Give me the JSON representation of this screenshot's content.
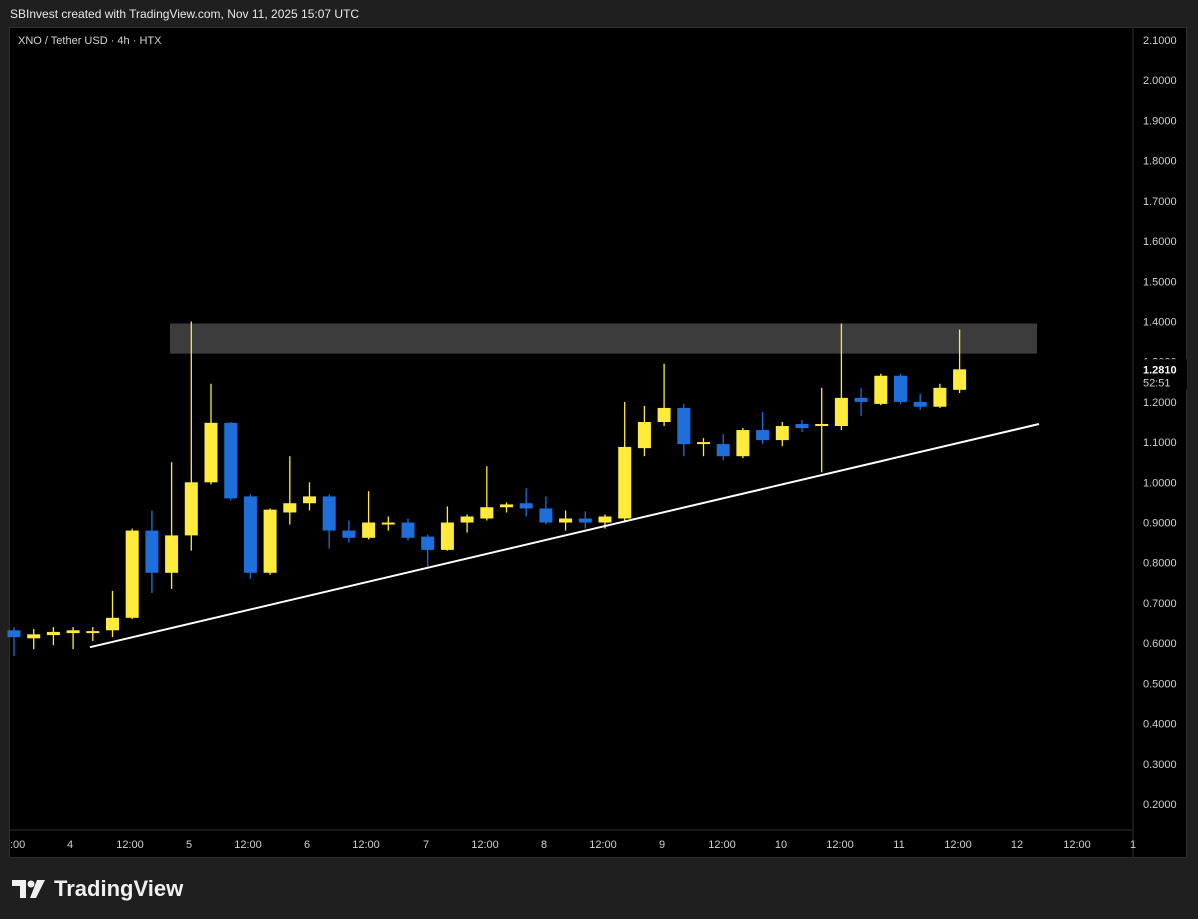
{
  "header": {
    "text": "SBInvest created with TradingView.com, Nov 11, 2025 15:07 UTC"
  },
  "symbol": {
    "text": "XNO / Tether USD · 4h · HTX"
  },
  "brand": {
    "name": "TradingView",
    "icon": "tradingview-logo-icon"
  },
  "colors": {
    "bull": "#ffeb3b",
    "bear": "#1e6fd9",
    "zone": "#3c3c3c",
    "trendline": "#ffffff",
    "background": "#000000",
    "text": "#d1d1d1"
  },
  "chart_data": {
    "type": "candlestick",
    "title": "",
    "ylim": [
      0.15,
      2.15
    ],
    "y_ticks": [
      "2.1000",
      "2.0000",
      "1.9000",
      "1.8000",
      "1.7000",
      "1.6000",
      "1.5000",
      "1.4000",
      "1.3000",
      "1.2000",
      "1.1000",
      "1.0000",
      "0.9000",
      "0.8000",
      "0.7000",
      "0.6000",
      "0.5000",
      "0.4000",
      "0.3000",
      "0.2000"
    ],
    "x_ticks": [
      ":00",
      "4",
      "12:00",
      "5",
      "12:00",
      "6",
      "12:00",
      "7",
      "12:00",
      "8",
      "12:00",
      "9",
      "12:00",
      "10",
      "12:00",
      "11",
      "12:00",
      "12",
      "12:00",
      "1"
    ],
    "last_price": {
      "value": "1.2810",
      "countdown": "52:51"
    },
    "candles": [
      {
        "o": 0.632,
        "h": 0.64,
        "l": 0.568,
        "c": 0.615
      },
      {
        "o": 0.612,
        "h": 0.635,
        "l": 0.585,
        "c": 0.622
      },
      {
        "o": 0.62,
        "h": 0.64,
        "l": 0.595,
        "c": 0.628
      },
      {
        "o": 0.625,
        "h": 0.64,
        "l": 0.585,
        "c": 0.632
      },
      {
        "o": 0.628,
        "h": 0.64,
        "l": 0.605,
        "c": 0.63
      },
      {
        "o": 0.632,
        "h": 0.73,
        "l": 0.615,
        "c": 0.663
      },
      {
        "o": 0.663,
        "h": 0.885,
        "l": 0.66,
        "c": 0.88
      },
      {
        "o": 0.88,
        "h": 0.93,
        "l": 0.725,
        "c": 0.775
      },
      {
        "o": 0.775,
        "h": 1.05,
        "l": 0.735,
        "c": 0.868
      },
      {
        "o": 0.868,
        "h": 1.4,
        "l": 0.83,
        "c": 1.0
      },
      {
        "o": 1.0,
        "h": 1.245,
        "l": 0.995,
        "c": 1.148
      },
      {
        "o": 1.148,
        "h": 1.15,
        "l": 0.955,
        "c": 0.96
      },
      {
        "o": 0.965,
        "h": 0.97,
        "l": 0.76,
        "c": 0.775
      },
      {
        "o": 0.775,
        "h": 0.935,
        "l": 0.77,
        "c": 0.932
      },
      {
        "o": 0.925,
        "h": 1.065,
        "l": 0.895,
        "c": 0.948
      },
      {
        "o": 0.948,
        "h": 1.0,
        "l": 0.93,
        "c": 0.965
      },
      {
        "o": 0.965,
        "h": 0.97,
        "l": 0.835,
        "c": 0.88
      },
      {
        "o": 0.88,
        "h": 0.905,
        "l": 0.85,
        "c": 0.862
      },
      {
        "o": 0.862,
        "h": 0.978,
        "l": 0.858,
        "c": 0.9
      },
      {
        "o": 0.9,
        "h": 0.915,
        "l": 0.88,
        "c": 0.9
      },
      {
        "o": 0.9,
        "h": 0.91,
        "l": 0.855,
        "c": 0.862
      },
      {
        "o": 0.865,
        "h": 0.87,
        "l": 0.79,
        "c": 0.832
      },
      {
        "o": 0.832,
        "h": 0.94,
        "l": 0.83,
        "c": 0.9
      },
      {
        "o": 0.9,
        "h": 0.92,
        "l": 0.875,
        "c": 0.915
      },
      {
        "o": 0.91,
        "h": 1.04,
        "l": 0.905,
        "c": 0.938
      },
      {
        "o": 0.938,
        "h": 0.95,
        "l": 0.925,
        "c": 0.945
      },
      {
        "o": 0.948,
        "h": 0.985,
        "l": 0.915,
        "c": 0.935
      },
      {
        "o": 0.935,
        "h": 0.965,
        "l": 0.895,
        "c": 0.9
      },
      {
        "o": 0.9,
        "h": 0.93,
        "l": 0.88,
        "c": 0.91
      },
      {
        "o": 0.91,
        "h": 0.928,
        "l": 0.885,
        "c": 0.9
      },
      {
        "o": 0.9,
        "h": 0.92,
        "l": 0.885,
        "c": 0.915
      },
      {
        "o": 0.91,
        "h": 1.2,
        "l": 0.9,
        "c": 1.088
      },
      {
        "o": 1.085,
        "h": 1.19,
        "l": 1.065,
        "c": 1.15
      },
      {
        "o": 1.15,
        "h": 1.295,
        "l": 1.14,
        "c": 1.185
      },
      {
        "o": 1.185,
        "h": 1.195,
        "l": 1.065,
        "c": 1.095
      },
      {
        "o": 1.095,
        "h": 1.11,
        "l": 1.065,
        "c": 1.1
      },
      {
        "o": 1.095,
        "h": 1.12,
        "l": 1.055,
        "c": 1.065
      },
      {
        "o": 1.065,
        "h": 1.135,
        "l": 1.06,
        "c": 1.13
      },
      {
        "o": 1.13,
        "h": 1.175,
        "l": 1.095,
        "c": 1.105
      },
      {
        "o": 1.105,
        "h": 1.15,
        "l": 1.09,
        "c": 1.14
      },
      {
        "o": 1.145,
        "h": 1.155,
        "l": 1.125,
        "c": 1.135
      },
      {
        "o": 1.14,
        "h": 1.235,
        "l": 1.025,
        "c": 1.145
      },
      {
        "o": 1.14,
        "h": 1.395,
        "l": 1.13,
        "c": 1.21
      },
      {
        "o": 1.21,
        "h": 1.235,
        "l": 1.165,
        "c": 1.2
      },
      {
        "o": 1.195,
        "h": 1.27,
        "l": 1.192,
        "c": 1.265
      },
      {
        "o": 1.265,
        "h": 1.27,
        "l": 1.195,
        "c": 1.2
      },
      {
        "o": 1.2,
        "h": 1.22,
        "l": 1.18,
        "c": 1.188
      },
      {
        "o": 1.188,
        "h": 1.245,
        "l": 1.185,
        "c": 1.235
      },
      {
        "o": 1.23,
        "h": 1.38,
        "l": 1.222,
        "c": 1.281
      }
    ],
    "zone": {
      "top": 1.395,
      "bottom": 1.32
    },
    "trendline": {
      "start": 0.59,
      "end": 1.145
    }
  }
}
